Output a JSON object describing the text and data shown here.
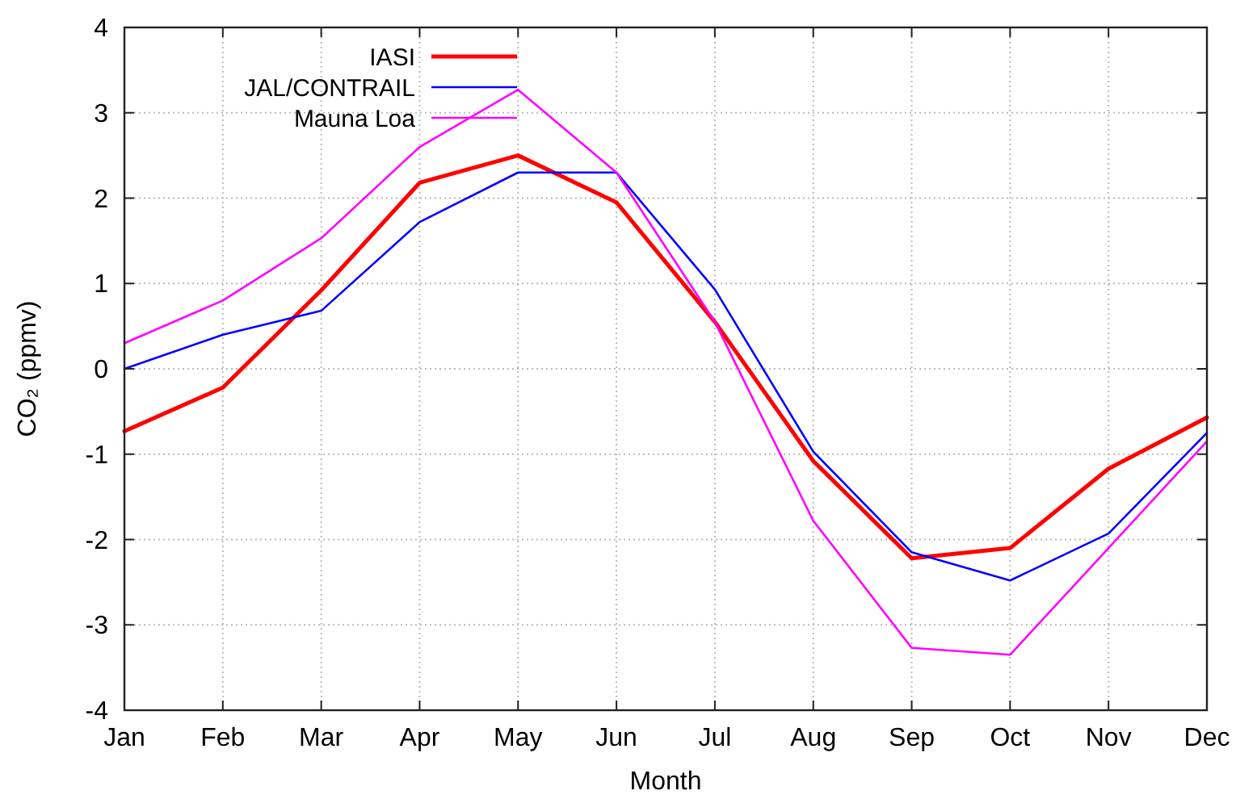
{
  "chart_data": {
    "type": "line",
    "xlabel": "Month",
    "ylabel": "CO₂ (ppmv)",
    "categories": [
      "Jan",
      "Feb",
      "Mar",
      "Apr",
      "May",
      "Jun",
      "Jul",
      "Aug",
      "Sep",
      "Oct",
      "Nov",
      "Dec"
    ],
    "series": [
      {
        "name": "IASI",
        "color": "#ff0000",
        "values": [
          -0.73,
          -0.22,
          0.92,
          2.18,
          2.5,
          1.95,
          0.55,
          -1.08,
          -2.22,
          -2.1,
          -1.17,
          -0.57
        ]
      },
      {
        "name": "JAL/CONTRAIL",
        "color": "#0000ff",
        "values": [
          0,
          0.4,
          0.68,
          1.72,
          2.3,
          2.3,
          0.93,
          -0.97,
          -2.15,
          -2.48,
          -1.93,
          -0.75
        ]
      },
      {
        "name": "Mauna Loa",
        "color": "#ff00ff",
        "values": [
          0.3,
          0.8,
          1.53,
          2.6,
          3.27,
          2.3,
          0.55,
          -1.78,
          -3.27,
          -3.35,
          -2.1,
          -0.85
        ]
      }
    ],
    "ylim": [
      -4,
      4
    ],
    "yticks": [
      -4,
      -3,
      -2,
      -1,
      0,
      1,
      2,
      3,
      4
    ],
    "grid": true,
    "legend": "top left",
    "line_style": "solid",
    "marker": "none"
  }
}
